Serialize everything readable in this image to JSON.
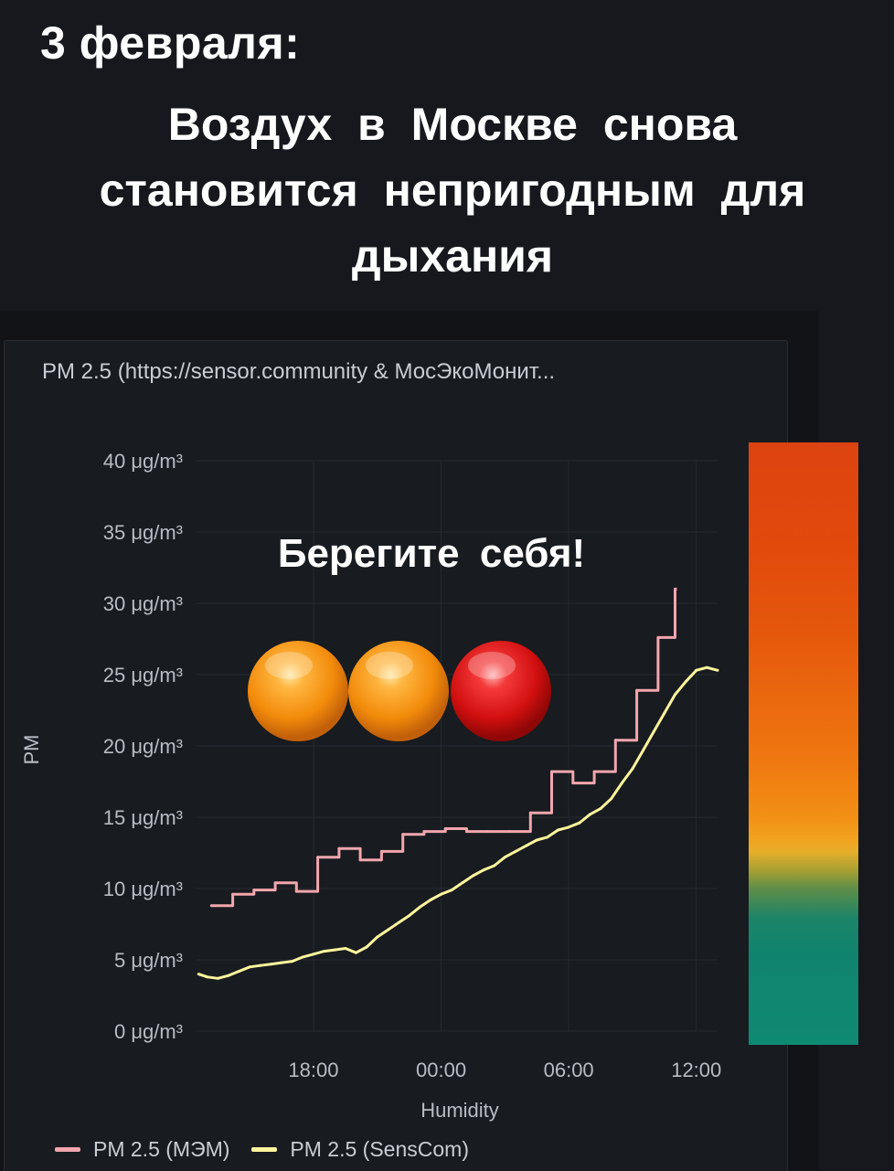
{
  "headline": {
    "date": "3  февраля:",
    "title": "Воздух в Москве снова становится непригодным для дыхания"
  },
  "overlay": {
    "warning": "Берегите себя!",
    "lights": [
      "orange",
      "orange",
      "red"
    ]
  },
  "colors": {
    "mem_series": "#f2a6ad",
    "senscom_series": "#fff59d",
    "background": "#16181d"
  },
  "chart_data": {
    "type": "line",
    "title": "PM 2.5 (https://sensor.community & МосЭкоМонит...",
    "xlabel": "Humidity",
    "ylabel": "PM",
    "ylim": [
      0,
      40
    ],
    "xlim": [
      12.5,
      37
    ],
    "x_ticks": [
      {
        "value": 18,
        "label": "18:00"
      },
      {
        "value": 24,
        "label": "00:00"
      },
      {
        "value": 30,
        "label": "06:00"
      },
      {
        "value": 36,
        "label": "12:00"
      }
    ],
    "y_ticks": [
      {
        "value": 0,
        "label": "0 μg/m³"
      },
      {
        "value": 5,
        "label": "5 μg/m³"
      },
      {
        "value": 10,
        "label": "10 μg/m³"
      },
      {
        "value": 15,
        "label": "15 μg/m³"
      },
      {
        "value": 20,
        "label": "20 μg/m³"
      },
      {
        "value": 25,
        "label": "25 μg/m³"
      },
      {
        "value": 30,
        "label": "30 μg/m³"
      },
      {
        "value": 35,
        "label": "35 μg/m³"
      },
      {
        "value": 40,
        "label": "40 μg/m³"
      }
    ],
    "grid": true,
    "legend": "bottom-left",
    "series": [
      {
        "name": "PM 2.5 (МЭМ)",
        "style": "step",
        "color": "#f2a6ad",
        "points": [
          [
            13.2,
            8.8
          ],
          [
            14.2,
            9.6
          ],
          [
            15.2,
            9.9
          ],
          [
            16.2,
            10.4
          ],
          [
            17.2,
            9.8
          ],
          [
            18.2,
            12.2
          ],
          [
            19.2,
            12.8
          ],
          [
            20.2,
            12.0
          ],
          [
            21.2,
            12.6
          ],
          [
            22.2,
            13.8
          ],
          [
            23.2,
            14.0
          ],
          [
            24.2,
            14.2
          ],
          [
            25.2,
            14.0
          ],
          [
            26.2,
            14.0
          ],
          [
            27.2,
            14.0
          ],
          [
            28.2,
            15.3
          ],
          [
            29.2,
            18.2
          ],
          [
            30.2,
            17.4
          ],
          [
            31.2,
            18.2
          ],
          [
            32.2,
            20.4
          ],
          [
            33.2,
            23.9
          ],
          [
            34.2,
            27.6
          ],
          [
            35.0,
            31.0
          ]
        ]
      },
      {
        "name": "PM 2.5 (SensCom)",
        "style": "line",
        "color": "#fff59d",
        "points": [
          [
            12.6,
            4.0
          ],
          [
            13.0,
            3.8
          ],
          [
            13.5,
            3.7
          ],
          [
            14.0,
            3.9
          ],
          [
            14.5,
            4.2
          ],
          [
            15.0,
            4.5
          ],
          [
            15.5,
            4.6
          ],
          [
            16.0,
            4.7
          ],
          [
            16.5,
            4.8
          ],
          [
            17.0,
            4.9
          ],
          [
            17.5,
            5.2
          ],
          [
            18.0,
            5.4
          ],
          [
            18.5,
            5.6
          ],
          [
            19.0,
            5.7
          ],
          [
            19.5,
            5.8
          ],
          [
            20.0,
            5.5
          ],
          [
            20.5,
            5.9
          ],
          [
            21.0,
            6.6
          ],
          [
            21.5,
            7.1
          ],
          [
            22.0,
            7.6
          ],
          [
            22.5,
            8.1
          ],
          [
            23.0,
            8.7
          ],
          [
            23.5,
            9.2
          ],
          [
            24.0,
            9.6
          ],
          [
            24.5,
            9.9
          ],
          [
            25.0,
            10.4
          ],
          [
            25.5,
            10.9
          ],
          [
            26.0,
            11.3
          ],
          [
            26.5,
            11.6
          ],
          [
            27.0,
            12.2
          ],
          [
            27.5,
            12.6
          ],
          [
            28.0,
            13.0
          ],
          [
            28.5,
            13.4
          ],
          [
            29.0,
            13.6
          ],
          [
            29.5,
            14.1
          ],
          [
            30.0,
            14.3
          ],
          [
            30.5,
            14.6
          ],
          [
            31.0,
            15.2
          ],
          [
            31.5,
            15.6
          ],
          [
            32.0,
            16.3
          ],
          [
            32.5,
            17.4
          ],
          [
            33.0,
            18.4
          ],
          [
            33.5,
            19.7
          ],
          [
            34.0,
            21.0
          ],
          [
            34.5,
            22.3
          ],
          [
            35.0,
            23.6
          ],
          [
            35.5,
            24.5
          ],
          [
            36.0,
            25.3
          ],
          [
            36.5,
            25.5
          ],
          [
            37.0,
            25.3
          ]
        ]
      }
    ]
  }
}
